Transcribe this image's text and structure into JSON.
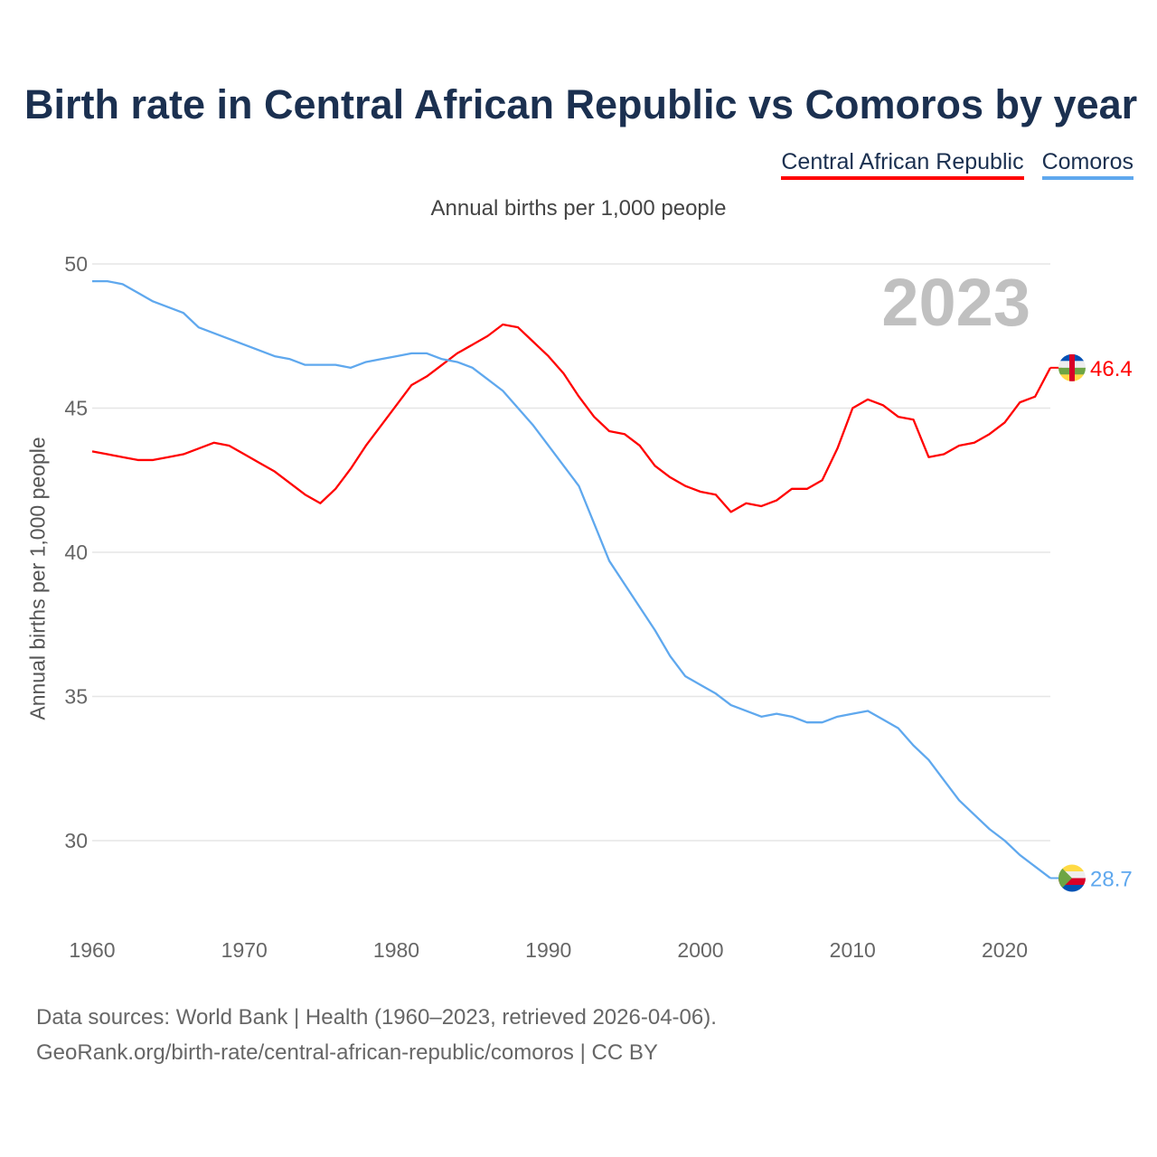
{
  "title": "Birth rate in Central African Republic vs Comoros by year",
  "legend": [
    {
      "name": "Central African Republic",
      "color": "#ff0000"
    },
    {
      "name": "Comoros",
      "color": "#5fa8ee"
    }
  ],
  "subtitle": "Annual births per 1,000 people",
  "source": {
    "line1": "Data sources: World Bank | Health (1960–2023, retrieved 2026-04-06).",
    "line2": "GeoRank.org/birth-rate/central-african-republic/comoros | CC BY"
  },
  "chart_data": {
    "type": "line",
    "title": "Birth rate in Central African Republic vs Comoros by year",
    "xlabel": "",
    "ylabel": "Annual births per 1,000 people",
    "year_label": "2023",
    "xlim": [
      1960,
      2023
    ],
    "ylim": [
      28,
      50
    ],
    "xticks": [
      "1960",
      "1970",
      "1980",
      "1990",
      "2000",
      "2010",
      "2020"
    ],
    "yticks": [
      "30",
      "35",
      "40",
      "45",
      "50"
    ],
    "grid": true,
    "legend_position": "top-right",
    "x": [
      1960,
      1961,
      1962,
      1963,
      1964,
      1965,
      1966,
      1967,
      1968,
      1969,
      1970,
      1971,
      1972,
      1973,
      1974,
      1975,
      1976,
      1977,
      1978,
      1979,
      1980,
      1981,
      1982,
      1983,
      1984,
      1985,
      1986,
      1987,
      1988,
      1989,
      1990,
      1991,
      1992,
      1993,
      1994,
      1995,
      1996,
      1997,
      1998,
      1999,
      2000,
      2001,
      2002,
      2003,
      2004,
      2005,
      2006,
      2007,
      2008,
      2009,
      2010,
      2011,
      2012,
      2013,
      2014,
      2015,
      2016,
      2017,
      2018,
      2019,
      2020,
      2021,
      2022,
      2023
    ],
    "series": [
      {
        "name": "Central African Republic",
        "color": "#ff0000",
        "flag": "central-african-republic",
        "end_label": "46.4",
        "values": [
          43.5,
          43.4,
          43.3,
          43.2,
          43.2,
          43.3,
          43.4,
          43.6,
          43.8,
          43.7,
          43.4,
          43.1,
          42.8,
          42.4,
          42.0,
          41.7,
          42.2,
          42.9,
          43.7,
          44.4,
          45.1,
          45.8,
          46.1,
          46.5,
          46.9,
          47.2,
          47.5,
          47.9,
          47.8,
          47.3,
          46.8,
          46.2,
          45.4,
          44.7,
          44.2,
          44.1,
          43.7,
          43.0,
          42.6,
          42.3,
          42.1,
          42.0,
          41.4,
          41.7,
          41.6,
          41.8,
          42.2,
          42.2,
          42.5,
          43.6,
          45.0,
          45.3,
          45.1,
          44.7,
          44.6,
          43.3,
          43.4,
          43.7,
          43.8,
          44.1,
          44.5,
          45.2,
          45.4,
          46.4
        ]
      },
      {
        "name": "Comoros",
        "color": "#5fa8ee",
        "flag": "comoros",
        "end_label": "28.7",
        "values": [
          49.4,
          49.4,
          49.3,
          49.0,
          48.7,
          48.5,
          48.3,
          47.8,
          47.6,
          47.4,
          47.2,
          47.0,
          46.8,
          46.7,
          46.5,
          46.5,
          46.5,
          46.4,
          46.6,
          46.7,
          46.8,
          46.9,
          46.9,
          46.7,
          46.6,
          46.4,
          46.0,
          45.6,
          45.0,
          44.4,
          43.7,
          43.0,
          42.3,
          41.0,
          39.7,
          38.9,
          38.1,
          37.3,
          36.4,
          35.7,
          35.4,
          35.1,
          34.7,
          34.5,
          34.3,
          34.4,
          34.3,
          34.1,
          34.1,
          34.3,
          34.4,
          34.5,
          34.2,
          33.9,
          33.3,
          32.8,
          32.1,
          31.4,
          30.9,
          30.4,
          30.0,
          29.5,
          29.1,
          28.7
        ]
      }
    ]
  }
}
